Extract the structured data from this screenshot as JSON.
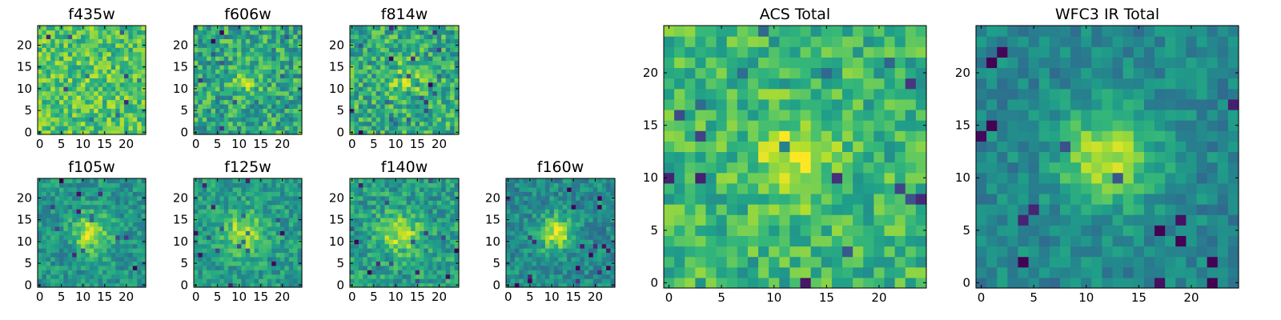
{
  "chart_data": [
    {
      "type": "heatmap",
      "title": "f435w",
      "xlim": [
        0,
        24
      ],
      "ylim": [
        0,
        24
      ],
      "xticks": [
        0,
        5,
        10,
        15,
        20
      ],
      "yticks": [
        0,
        5,
        10,
        15,
        20
      ],
      "colormap": "viridis",
      "source_peak": [
        12,
        11
      ],
      "source_width": 3.0,
      "source_strength": 0.05,
      "background": 0.72,
      "noise": 0.2,
      "seed": 1
    },
    {
      "type": "heatmap",
      "title": "f606w",
      "xlim": [
        0,
        24
      ],
      "ylim": [
        0,
        24
      ],
      "xticks": [
        0,
        5,
        10,
        15,
        20
      ],
      "yticks": [
        0,
        5,
        10,
        15,
        20
      ],
      "colormap": "viridis",
      "source_peak": [
        11,
        12
      ],
      "source_width": 2.2,
      "source_strength": 0.25,
      "background": 0.6,
      "noise": 0.22,
      "seed": 2
    },
    {
      "type": "heatmap",
      "title": "f814w",
      "xlim": [
        0,
        24
      ],
      "ylim": [
        0,
        24
      ],
      "xticks": [
        0,
        5,
        10,
        15,
        20
      ],
      "yticks": [
        0,
        5,
        10,
        15,
        20
      ],
      "colormap": "viridis",
      "source_peak": [
        12,
        12
      ],
      "source_width": 2.2,
      "source_strength": 0.3,
      "background": 0.62,
      "noise": 0.22,
      "seed": 3
    },
    {
      "type": "heatmap",
      "title": "f105w",
      "xlim": [
        0,
        24
      ],
      "ylim": [
        0,
        24
      ],
      "xticks": [
        0,
        5,
        10,
        15,
        20
      ],
      "yticks": [
        0,
        5,
        10,
        15,
        20
      ],
      "colormap": "viridis",
      "source_peak": [
        12,
        12
      ],
      "source_width": 3.0,
      "source_strength": 0.4,
      "background": 0.52,
      "noise": 0.15,
      "seed": 4
    },
    {
      "type": "heatmap",
      "title": "f125w",
      "xlim": [
        0,
        24
      ],
      "ylim": [
        0,
        24
      ],
      "xticks": [
        0,
        5,
        10,
        15,
        20
      ],
      "yticks": [
        0,
        5,
        10,
        15,
        20
      ],
      "colormap": "viridis",
      "source_peak": [
        11,
        12
      ],
      "source_width": 3.2,
      "source_strength": 0.35,
      "background": 0.55,
      "noise": 0.15,
      "seed": 5
    },
    {
      "type": "heatmap",
      "title": "f140w",
      "xlim": [
        0,
        24
      ],
      "ylim": [
        0,
        24
      ],
      "xticks": [
        0,
        5,
        10,
        15,
        20
      ],
      "yticks": [
        0,
        5,
        10,
        15,
        20
      ],
      "colormap": "viridis",
      "source_peak": [
        11,
        12
      ],
      "source_width": 3.0,
      "source_strength": 0.35,
      "background": 0.56,
      "noise": 0.17,
      "seed": 6
    },
    {
      "type": "heatmap",
      "title": "f160w",
      "xlim": [
        0,
        24
      ],
      "ylim": [
        0,
        24
      ],
      "xticks": [
        0,
        5,
        10,
        15,
        20
      ],
      "yticks": [
        0,
        5,
        10,
        15,
        20
      ],
      "colormap": "viridis",
      "source_peak": [
        11,
        12
      ],
      "source_width": 2.8,
      "source_strength": 0.45,
      "background": 0.48,
      "noise": 0.15,
      "seed": 7
    },
    {
      "type": "heatmap",
      "title": "ACS Total",
      "xlim": [
        0,
        24
      ],
      "ylim": [
        0,
        24
      ],
      "xticks": [
        0,
        5,
        10,
        15,
        20
      ],
      "yticks": [
        0,
        5,
        10,
        15,
        20
      ],
      "colormap": "viridis",
      "source_peak": [
        12,
        12
      ],
      "source_width": 2.8,
      "source_strength": 0.3,
      "background": 0.66,
      "noise": 0.18,
      "seed": 8
    },
    {
      "type": "heatmap",
      "title": "WFC3 IR Total",
      "xlim": [
        0,
        24
      ],
      "ylim": [
        0,
        24
      ],
      "xticks": [
        0,
        5,
        10,
        15,
        20
      ],
      "yticks": [
        0,
        5,
        10,
        15,
        20
      ],
      "colormap": "viridis",
      "source_peak": [
        12,
        12
      ],
      "source_width": 3.2,
      "source_strength": 0.45,
      "background": 0.46,
      "noise": 0.12,
      "seed": 9
    }
  ]
}
